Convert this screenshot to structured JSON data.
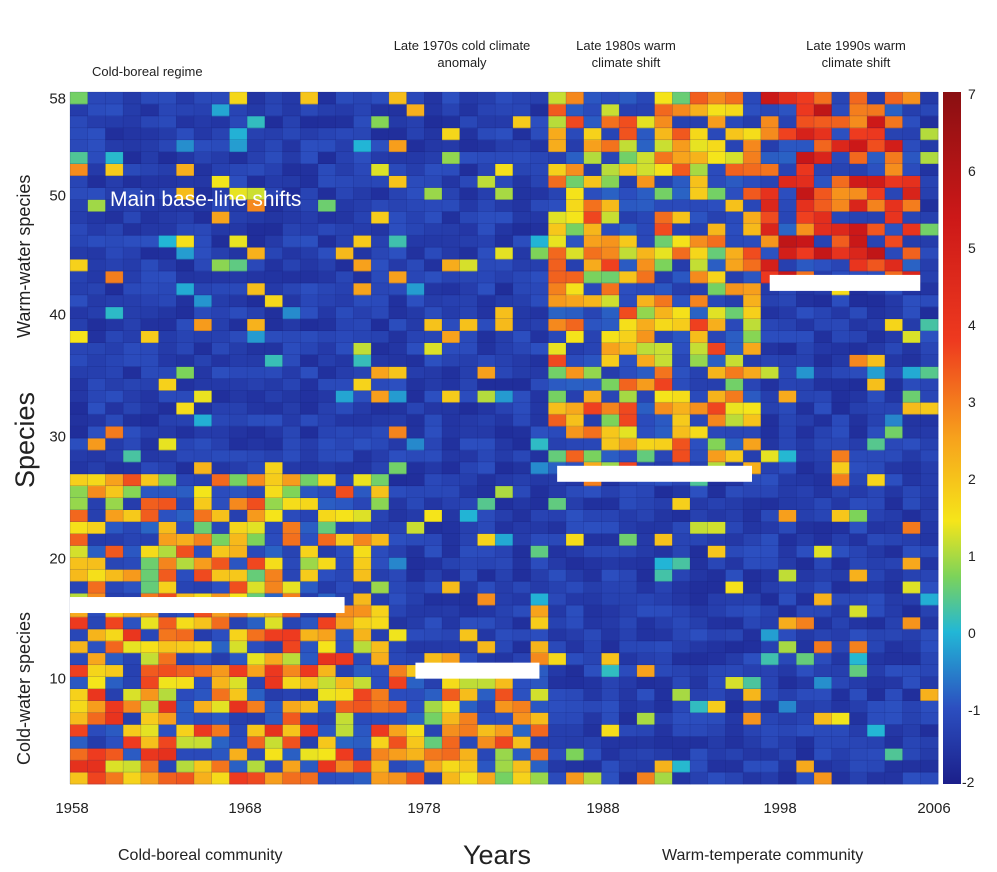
{
  "chart_data": {
    "type": "heatmap",
    "regimes": [
      {
        "label": "Cold-boreal regime"
      },
      {
        "label": "Late 1970s cold climate anomaly"
      },
      {
        "label": "Late 1980s warm climate shift"
      },
      {
        "label": "Late 1990s warm climate shift"
      }
    ],
    "annotation": "Main base-line shifts",
    "xlabel": "Years",
    "ylabel": "Species",
    "ylabel_groups": [
      "Cold-water species",
      "Warm-water species"
    ],
    "community_labels": [
      "Cold-boreal community",
      "Warm-temperate community"
    ],
    "x_range": [
      1958,
      2006
    ],
    "y_range": [
      1,
      58
    ],
    "x_ticks": [
      "1958",
      "1968",
      "1978",
      "1988",
      "1998",
      "2006"
    ],
    "y_ticks": [
      "10",
      "20",
      "30",
      "40",
      "50",
      "58"
    ],
    "colorbar": {
      "range": [
        -2,
        7
      ],
      "ticks": [
        "7",
        "6",
        "5",
        "4",
        "3",
        "2",
        "1",
        "0",
        "-1",
        "-2"
      ]
    },
    "baseline_shifts": [
      {
        "species": 16,
        "start_year": 1958,
        "end_year": 1973.5
      },
      {
        "species": 10.5,
        "start_year": 1977.5,
        "end_year": 1984.5
      },
      {
        "species": 27,
        "start_year": 1985.5,
        "end_year": 1996.5
      },
      {
        "species": 43,
        "start_year": 1997.5,
        "end_year": 2006
      }
    ],
    "regime_periods": [
      {
        "start_year": 1958,
        "end_year": 1976,
        "species_low": 16,
        "species_high": 26,
        "level": 2.0
      },
      {
        "start_year": 1958,
        "end_year": 1976,
        "species_low": 1,
        "species_high": 15,
        "level": 2.5
      },
      {
        "start_year": 1976,
        "end_year": 1985,
        "species_low": 1,
        "species_high": 10,
        "level": 2.0
      },
      {
        "start_year": 1985,
        "end_year": 1997,
        "species_low": 27,
        "species_high": 58,
        "level": 2.0
      },
      {
        "start_year": 1997,
        "end_year": 2006,
        "species_low": 43,
        "species_high": 58,
        "level": 4.0
      }
    ]
  }
}
